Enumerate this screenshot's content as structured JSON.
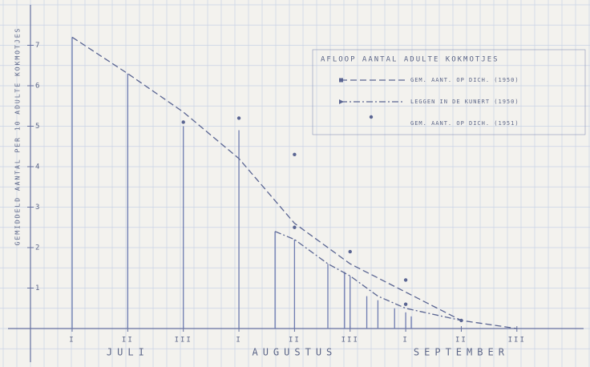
{
  "chart_data": {
    "type": "line",
    "y_label": "GEMIDDELD AANTAL PER 10 ADULTE KOKMOTJES",
    "legend_title": "AFLOOP AANTAL ADULTE KOKMOTJES",
    "legend": "top-right",
    "xlim": [
      0.25,
      10.2
    ],
    "ylim": [
      0,
      8
    ],
    "xticks": [
      {
        "value": 1,
        "label": "I"
      },
      {
        "value": 2,
        "label": "II"
      },
      {
        "value": 3,
        "label": "III"
      },
      {
        "value": 4,
        "label": "I"
      },
      {
        "value": 5,
        "label": "II"
      },
      {
        "value": 6,
        "label": "III"
      },
      {
        "value": 7,
        "label": "I"
      },
      {
        "value": 8,
        "label": "II"
      },
      {
        "value": 9,
        "label": "III"
      }
    ],
    "yticks": [
      1,
      2,
      3,
      4,
      5,
      6,
      7
    ],
    "months": [
      "JULI",
      "AUGUSTUS",
      "SEPTEMBER"
    ],
    "series": [
      {
        "name": "GEM. AANT. OP DICH. (1950)",
        "color": "#5a6592",
        "style": "dashed",
        "marker": "square",
        "x": [
          1,
          2,
          3,
          4,
          5,
          6,
          7,
          8,
          9
        ],
        "values": [
          7.2,
          6.3,
          5.35,
          4.2,
          2.6,
          1.6,
          0.9,
          0.2,
          0
        ]
      },
      {
        "name": "LEGGEN IN DE KUNERT (1950)",
        "color": "#5a6592",
        "style": "dashdot",
        "marker": "triangle",
        "x": [
          4.65,
          5,
          5.6,
          6,
          6.5,
          7,
          8
        ],
        "values": [
          2.4,
          2.2,
          1.6,
          1.3,
          0.8,
          0.5,
          0.2
        ]
      },
      {
        "name": "GEM. AANT. OP DICH. (1951)",
        "color": "#5a6592",
        "style": "points",
        "marker": "dot",
        "x": [
          3,
          4,
          5,
          5,
          6,
          7,
          7,
          8
        ],
        "values": [
          5.1,
          5.2,
          4.3,
          2.5,
          1.9,
          1.2,
          0.6,
          0.2
        ]
      }
    ],
    "stems": {
      "color": "#6d7bb0",
      "x": [
        1,
        2,
        3,
        4,
        4.65,
        5,
        5.6,
        5.9,
        6,
        6.3,
        6.5,
        6.8,
        7,
        7.1
      ],
      "values": [
        7.2,
        6.3,
        5.0,
        4.9,
        2.4,
        2.2,
        1.6,
        1.4,
        1.3,
        0.8,
        0.7,
        0.5,
        0.4,
        0.3
      ]
    }
  }
}
